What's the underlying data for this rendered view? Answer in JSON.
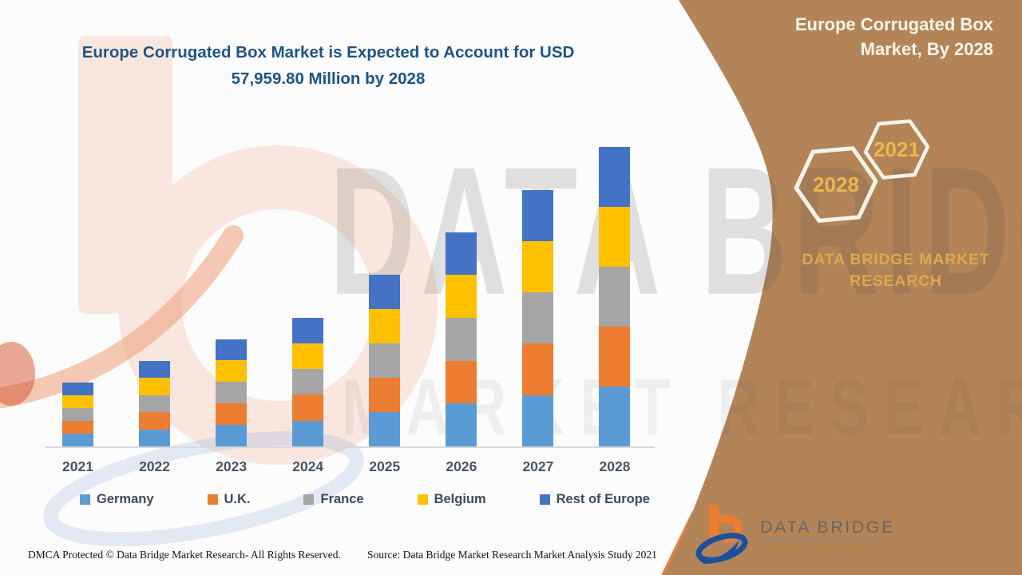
{
  "header": {
    "title_line1": "Europe Corrugated Box Market is Expected to Account for USD",
    "title_line2": "57,959.80 Million by 2028"
  },
  "side_panel": {
    "title_line1": "Europe Corrugated Box",
    "title_line2": "Market, By 2028",
    "hexagon_labels": {
      "big": "2028",
      "small": "2021"
    },
    "brand_text": "DATA BRIDGE MARKET RESEARCH",
    "logo": {
      "name": "DATA BRIDGE",
      "sub": "MARKET RESEARCH"
    },
    "colors": {
      "panel": "#b28457",
      "edge_stripe": "#e5823f",
      "gold": "#dda74e",
      "hex_outline": "#f7f2e8"
    }
  },
  "watermark": {
    "row1": "DATA BRIDGE",
    "row2": "MARKET RESEARCH"
  },
  "footer": {
    "dmca": "DMCA Protected © Data Bridge Market Research- All Rights Reserved.",
    "source": "Source: Data Bridge Market Research Market Analysis Study 2021"
  },
  "chart_data": {
    "type": "bar",
    "stacked": true,
    "title": "Europe Corrugated Box Market is Expected to Account for USD 57,959.80 Million by 2028",
    "unit": "USD Million",
    "categories": [
      "2021",
      "2022",
      "2023",
      "2024",
      "2025",
      "2026",
      "2027",
      "2028"
    ],
    "totals": [
      12350,
      16630,
      20740,
      24960,
      33200,
      41430,
      49670,
      57959.8
    ],
    "series": [
      {
        "name": "Germany",
        "color": "#5B9BD5",
        "values": [
          2470,
          3326,
          4148,
          4992,
          6640,
          8286,
          9934,
          11591.96
        ]
      },
      {
        "name": "U.K.",
        "color": "#ED7D31",
        "values": [
          2470,
          3326,
          4148,
          4992,
          6640,
          8286,
          9934,
          11591.96
        ]
      },
      {
        "name": "France",
        "color": "#A5A5A5",
        "values": [
          2470,
          3326,
          4148,
          4992,
          6640,
          8286,
          9934,
          11591.96
        ]
      },
      {
        "name": "Belgium",
        "color": "#FFC000",
        "values": [
          2470,
          3326,
          4148,
          4992,
          6640,
          8286,
          9934,
          11591.96
        ]
      },
      {
        "name": "Rest of Europe",
        "color": "#4472C4",
        "values": [
          2470,
          3326,
          4148,
          4992,
          6640,
          8286,
          9934,
          11591.96
        ]
      }
    ],
    "ylim": [
      0,
      57959.8
    ],
    "y_axis_visible": false,
    "gridlines": false,
    "legend_position": "bottom"
  }
}
